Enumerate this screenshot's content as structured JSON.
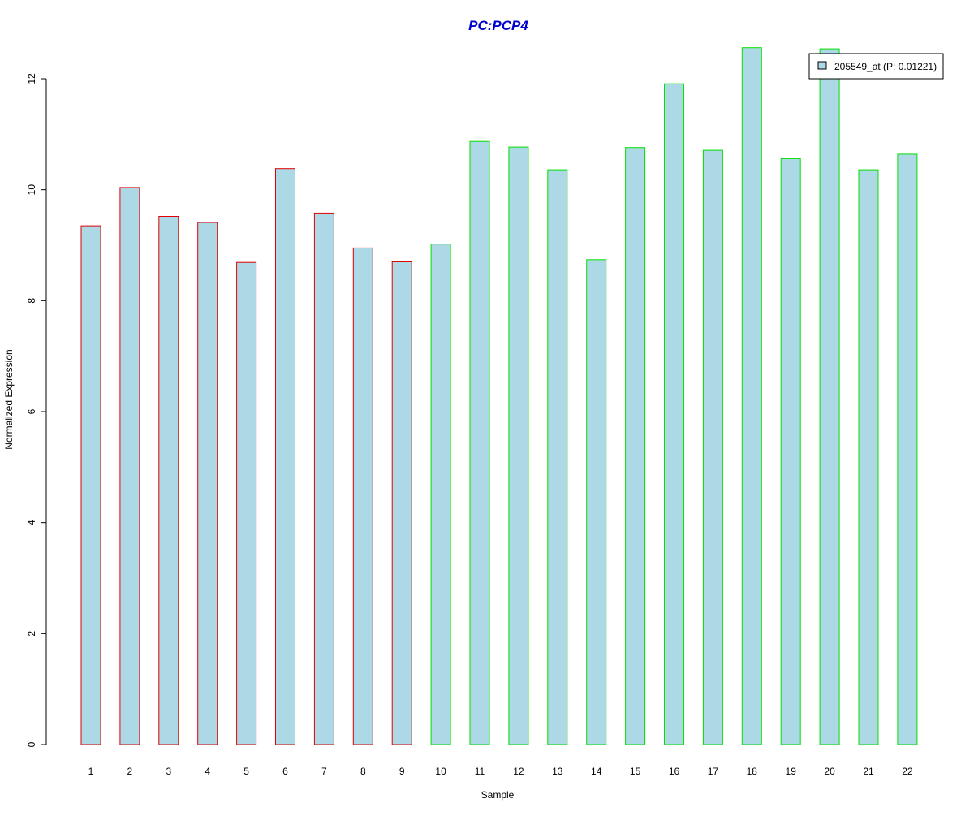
{
  "chart_data": {
    "type": "bar",
    "title": "PC:PCP4",
    "xlabel": "Sample",
    "ylabel": "Normalized Expression",
    "categories": [
      "1",
      "2",
      "3",
      "4",
      "5",
      "6",
      "7",
      "8",
      "9",
      "10",
      "11",
      "12",
      "13",
      "14",
      "15",
      "16",
      "17",
      "18",
      "19",
      "20",
      "21",
      "22"
    ],
    "series": [
      {
        "name": "205549_at (P: 0.01221)",
        "values": [
          9.35,
          10.04,
          9.52,
          9.41,
          8.69,
          10.38,
          9.58,
          8.95,
          8.7,
          9.02,
          10.87,
          10.77,
          10.36,
          8.74,
          10.76,
          11.91,
          10.71,
          12.56,
          10.56,
          12.54,
          10.36,
          10.64
        ]
      }
    ],
    "group_outline_colors": [
      "#e00000",
      "#e00000",
      "#e00000",
      "#e00000",
      "#e00000",
      "#e00000",
      "#e00000",
      "#e00000",
      "#e00000",
      "#00e000",
      "#00e000",
      "#00e000",
      "#00e000",
      "#00e000",
      "#00e000",
      "#00e000",
      "#00e000",
      "#00e000",
      "#00e000",
      "#00e000",
      "#00e000",
      "#00e000"
    ],
    "bar_fill": "#add8e6",
    "title_color": "#0000cc",
    "ylim": [
      0,
      12.56
    ],
    "yticks": [
      0,
      2,
      4,
      6,
      8,
      10,
      12
    ],
    "grid": false,
    "legend_position": "top-right"
  }
}
